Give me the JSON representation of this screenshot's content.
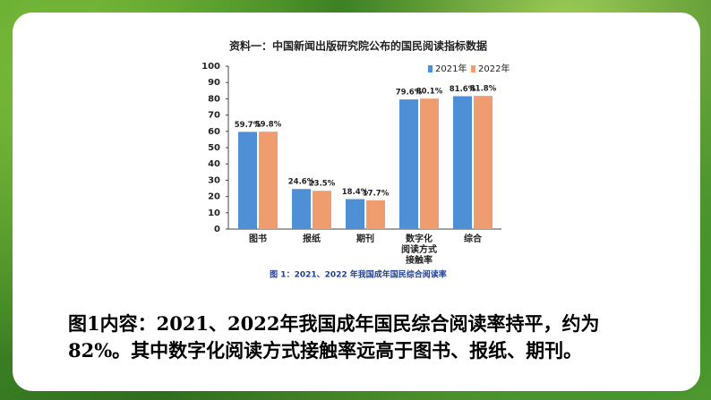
{
  "chart_data": {
    "type": "bar",
    "title": "资料一：中国新闻出版研究院公布的国民阅读指标数据",
    "caption": "图 1：2021、2022 年我国成年国民综合阅读率",
    "categories": [
      "图书",
      "报纸",
      "期刊",
      "数字化\n阅读方式\n接触率",
      "综合"
    ],
    "series": [
      {
        "name": "2021年",
        "color": "#4f8fd6",
        "values": [
          59.7,
          24.6,
          18.4,
          79.6,
          81.6
        ],
        "value_labels": [
          "59.7%",
          "24.6%",
          "18.4%",
          "79.6%",
          "81.6%"
        ]
      },
      {
        "name": "2022年",
        "color": "#ef9c6e",
        "values": [
          59.8,
          23.5,
          17.7,
          80.1,
          81.8
        ],
        "value_labels": [
          "59.8%",
          "23.5%",
          "17.7%",
          "80.1%",
          "81.8%"
        ]
      }
    ],
    "ylim": [
      0,
      100
    ],
    "yticks": [
      0,
      10,
      20,
      30,
      40,
      50,
      60,
      70,
      80,
      90,
      100
    ],
    "grid": false
  },
  "slide": {
    "body_lines": [
      "图1内容：2021、2022年我国成年国民综合阅读率持平，约为",
      "82%。其中数字化阅读方式接触率远高于图书、报纸、期刊。"
    ]
  }
}
